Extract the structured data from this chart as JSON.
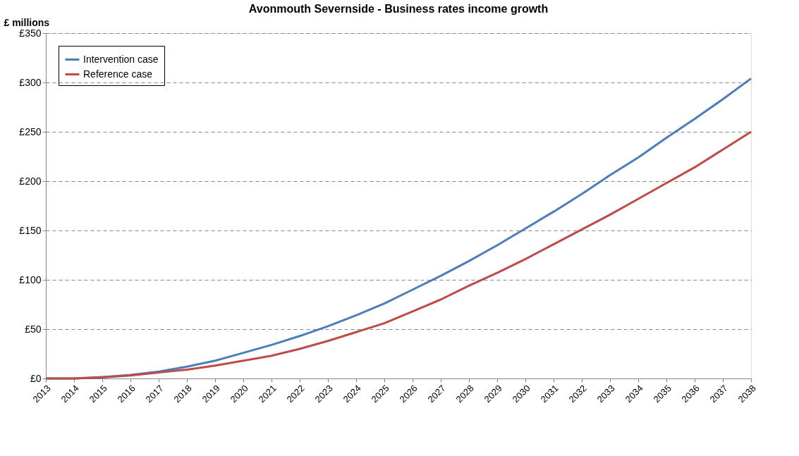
{
  "chart_data": {
    "type": "line",
    "title": "Avonmouth Severnside - Business rates income growth",
    "ylabel": "£ millions",
    "categories": [
      "2013",
      "2014",
      "2015",
      "2016",
      "2017",
      "2018",
      "2019",
      "2020",
      "2021",
      "2022",
      "2023",
      "2024",
      "2025",
      "2026",
      "2027",
      "2028",
      "2029",
      "2030",
      "2031",
      "2032",
      "2033",
      "2034",
      "2035",
      "2036",
      "2037",
      "2038"
    ],
    "series": [
      {
        "name": "Intervention case",
        "color": "#4a7ebb",
        "values": [
          0,
          0,
          1.5,
          3.5,
          7,
          12,
          18,
          26,
          34,
          43,
          53,
          64,
          76,
          90,
          104,
          119,
          135,
          152,
          169,
          187,
          206,
          224,
          244,
          263,
          283,
          304
        ]
      },
      {
        "name": "Reference case",
        "color": "#be4b48",
        "values": [
          0,
          0,
          1,
          3,
          6,
          9,
          13,
          18,
          23,
          30,
          38,
          47,
          56,
          68,
          80,
          94,
          107,
          121,
          136,
          151,
          166,
          182,
          198,
          214,
          232,
          250
        ]
      }
    ],
    "ylim": [
      0,
      350
    ],
    "yticks": [
      {
        "value": 0,
        "label": "£0"
      },
      {
        "value": 50,
        "label": "£50"
      },
      {
        "value": 100,
        "label": "£100"
      },
      {
        "value": 150,
        "label": "£150"
      },
      {
        "value": 200,
        "label": "£200"
      },
      {
        "value": 250,
        "label": "£250"
      },
      {
        "value": 300,
        "label": "£300"
      },
      {
        "value": 350,
        "label": "£350"
      }
    ],
    "grid": "y",
    "legend": "top left",
    "marker": "none",
    "line_style": "solid"
  }
}
